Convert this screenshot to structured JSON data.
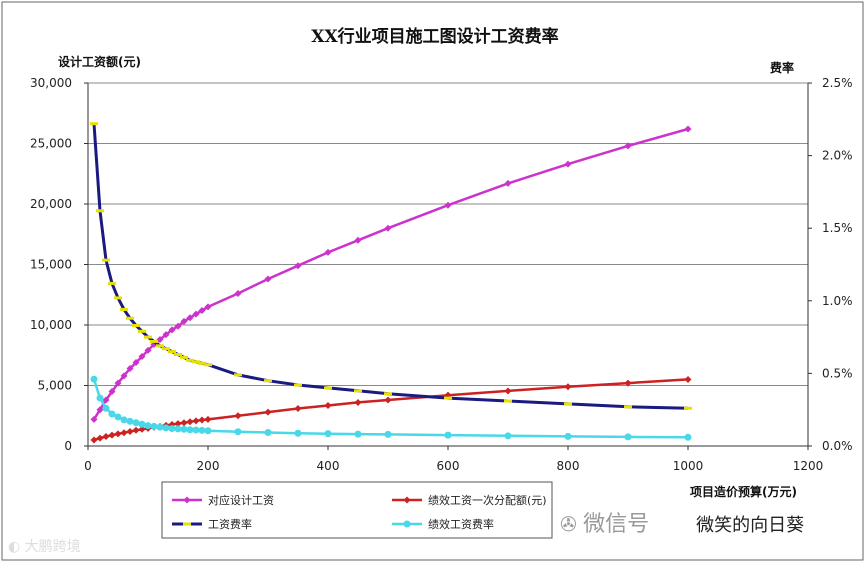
{
  "chart_data": {
    "type": "line",
    "title": "XX行业项目施工图设计工资费率",
    "xlabel": "项目造价预算(万元)",
    "ylabel": "设计工资额(元)",
    "y2label": "费率",
    "xlim": [
      0,
      1200
    ],
    "xticks": [
      "0",
      "200",
      "400",
      "600",
      "800",
      "1000",
      "1200"
    ],
    "ylim": [
      0,
      30000
    ],
    "yticks": [
      "0",
      "5,000",
      "10,000",
      "15,000",
      "20,000",
      "25,000",
      "30,000"
    ],
    "y2lim": [
      0,
      0.025
    ],
    "y2ticks": [
      "0.0%",
      "0.5%",
      "1.0%",
      "1.5%",
      "2.0%",
      "2.5%"
    ],
    "grid": true,
    "legend_position": "bottom",
    "series": [
      {
        "name": "对应设计工资",
        "axis": "left",
        "color": "#cc33cc",
        "marker": "diamond",
        "x": [
          10,
          20,
          30,
          40,
          50,
          60,
          70,
          80,
          90,
          100,
          110,
          120,
          130,
          140,
          150,
          160,
          170,
          180,
          190,
          200,
          250,
          300,
          350,
          400,
          450,
          500,
          600,
          700,
          800,
          900,
          1000
        ],
        "y": [
          2200,
          3000,
          3800,
          4500,
          5200,
          5800,
          6400,
          6900,
          7400,
          7900,
          8400,
          8800,
          9200,
          9600,
          9900,
          10300,
          10600,
          10900,
          11200,
          11500,
          12600,
          13800,
          14900,
          16000,
          17000,
          18000,
          19900,
          21700,
          23300,
          24800,
          26200
        ]
      },
      {
        "name": "绩效工资一次分配额(元)",
        "axis": "left",
        "color": "#cc2222",
        "marker": "diamond",
        "x": [
          10,
          20,
          30,
          40,
          50,
          60,
          70,
          80,
          90,
          100,
          110,
          120,
          130,
          140,
          150,
          160,
          170,
          180,
          190,
          200,
          250,
          300,
          350,
          400,
          450,
          500,
          600,
          700,
          800,
          900,
          1000
        ],
        "y": [
          500,
          650,
          780,
          900,
          1000,
          1100,
          1200,
          1300,
          1380,
          1460,
          1550,
          1620,
          1700,
          1780,
          1850,
          1920,
          2000,
          2080,
          2150,
          2200,
          2500,
          2800,
          3100,
          3350,
          3600,
          3800,
          4200,
          4550,
          4900,
          5200,
          5500
        ]
      },
      {
        "name": "工资费率",
        "axis": "right",
        "color": "#1a1a80",
        "marker": "dash",
        "marker_color": "#e8e000",
        "x": [
          10,
          20,
          30,
          40,
          50,
          60,
          70,
          80,
          90,
          100,
          110,
          120,
          130,
          140,
          150,
          160,
          170,
          180,
          190,
          200,
          250,
          300,
          350,
          400,
          450,
          500,
          600,
          700,
          800,
          900,
          1000
        ],
        "y": [
          0.0222,
          0.0162,
          0.0128,
          0.0112,
          0.0102,
          0.0094,
          0.0088,
          0.0083,
          0.0079,
          0.0075,
          0.0072,
          0.0069,
          0.0067,
          0.0065,
          0.0063,
          0.0061,
          0.0059,
          0.0058,
          0.0057,
          0.0056,
          0.0049,
          0.0045,
          0.0042,
          0.004,
          0.0038,
          0.0036,
          0.0033,
          0.0031,
          0.0029,
          0.0027,
          0.0026
        ]
      },
      {
        "name": "绩效工资费率",
        "axis": "right",
        "color": "#48d8e8",
        "marker": "circle",
        "x": [
          10,
          20,
          30,
          40,
          50,
          60,
          70,
          80,
          90,
          100,
          110,
          120,
          130,
          140,
          150,
          160,
          170,
          180,
          190,
          200,
          250,
          300,
          350,
          400,
          450,
          500,
          600,
          700,
          800,
          900,
          1000
        ],
        "y": [
          0.0046,
          0.0033,
          0.0026,
          0.0022,
          0.002,
          0.0018,
          0.0017,
          0.0016,
          0.0015,
          0.0014,
          0.00135,
          0.0013,
          0.00125,
          0.0012,
          0.00118,
          0.00115,
          0.00112,
          0.0011,
          0.00108,
          0.00105,
          0.00098,
          0.00093,
          0.00088,
          0.00085,
          0.00082,
          0.0008,
          0.00075,
          0.0007,
          0.00066,
          0.00063,
          0.0006
        ]
      }
    ]
  },
  "watermarks": {
    "left": "大鹏跨境",
    "wechat": "微信号",
    "account": "微笑的向日葵"
  }
}
